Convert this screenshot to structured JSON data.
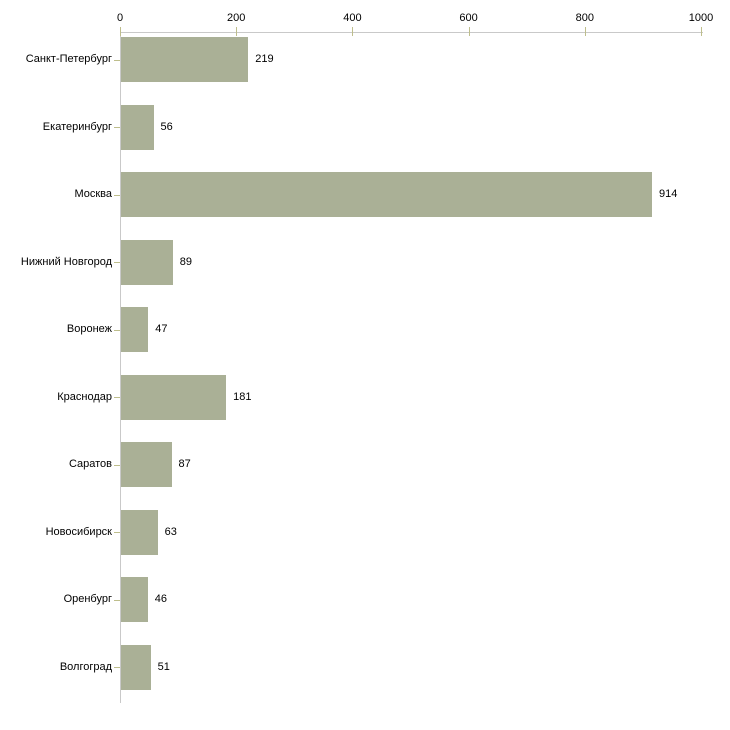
{
  "chart_data": {
    "type": "bar",
    "orientation": "horizontal",
    "title": "",
    "xlabel": "",
    "ylabel": "",
    "grid": false,
    "legend": false,
    "data_labels_visible": true,
    "categories": [
      "Санкт-Петербург",
      "Екатеринбург",
      "Москва",
      "Нижний Новгород",
      "Воронеж",
      "Краснодар",
      "Саратов",
      "Новосибирск",
      "Оренбург",
      "Волгоград"
    ],
    "values": [
      219,
      56,
      914,
      89,
      47,
      181,
      87,
      63,
      46,
      51
    ],
    "x_axis": {
      "position": "top",
      "range": [
        0,
        1000
      ],
      "ticks": [
        "0",
        "200",
        "400",
        "600",
        "800",
        "1000"
      ],
      "tick_values": [
        0,
        200,
        400,
        600,
        800,
        1000
      ]
    },
    "colors": {
      "bar": "#aab096",
      "axis": "#c9c9c9",
      "tick": "#bebe8c",
      "text": "#000000",
      "background": "#ffffff"
    }
  }
}
